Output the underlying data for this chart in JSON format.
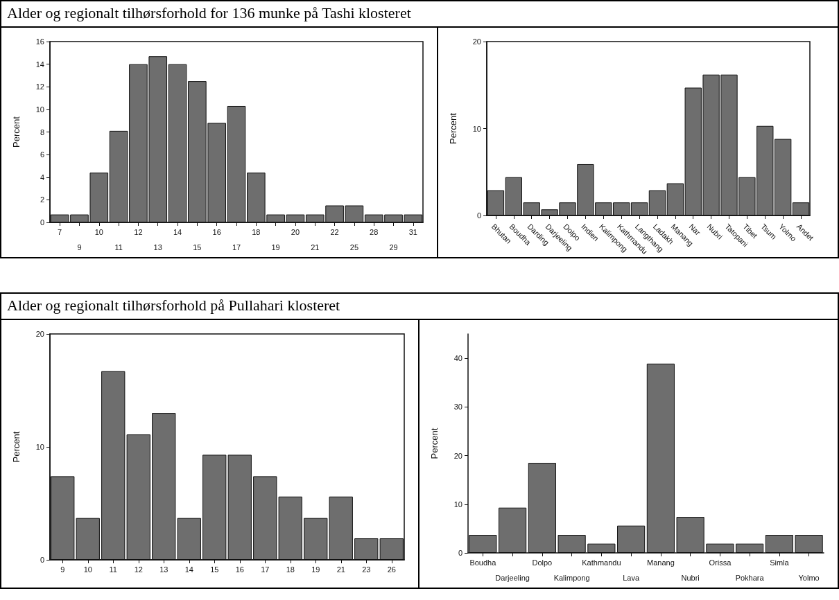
{
  "chart_data": [
    {
      "type": "bar",
      "title": "Alder og regionalt tilhørsforhold for 136 munke på Tashi klosteret",
      "ylabel": "Percent",
      "categories": [
        "7",
        "9",
        "10",
        "11",
        "12",
        "13",
        "14",
        "15",
        "16",
        "17",
        "18",
        "19",
        "20",
        "21",
        "22",
        "25",
        "28",
        "29",
        "31"
      ],
      "values": [
        0.7,
        0.7,
        4.4,
        8.1,
        14,
        14.7,
        14,
        12.5,
        8.8,
        10.3,
        4.4,
        0.7,
        0.7,
        0.7,
        1.5,
        1.5,
        0.7,
        0.7,
        0.7
      ],
      "color": "#6e6e6e",
      "ylim": [
        0,
        16
      ],
      "yticks": [
        0,
        2,
        4,
        6,
        8,
        10,
        12,
        14,
        16
      ],
      "grid": false
    },
    {
      "type": "bar",
      "ylabel": "Percent",
      "categories": [
        "Bhutan",
        "Boudha",
        "Darding",
        "Darjeeling",
        "Dolpo",
        "Indien",
        "Kalimpong",
        "Kathmandu",
        "Langthang",
        "Ladakh",
        "Manang",
        "Nar",
        "Nubri",
        "Tatopani",
        "Tibet",
        "Tsum",
        "Yolmo",
        "Andet"
      ],
      "values": [
        2.9,
        4.4,
        1.5,
        0.7,
        1.5,
        5.9,
        1.5,
        1.5,
        1.5,
        2.9,
        3.7,
        14.7,
        16.2,
        16.2,
        4.4,
        10.3,
        8.8,
        1.5
      ],
      "color": "#6e6e6e",
      "ylim": [
        0,
        20
      ],
      "yticks": [
        0,
        10,
        20
      ],
      "grid": false
    },
    {
      "type": "bar",
      "title": "Alder og regionalt tilhørsforhold på Pullahari klosteret",
      "ylabel": "Percent",
      "categories": [
        "9",
        "10",
        "11",
        "12",
        "13",
        "14",
        "15",
        "16",
        "17",
        "18",
        "19",
        "21",
        "23",
        "26"
      ],
      "values": [
        7.4,
        3.7,
        16.7,
        11.1,
        13,
        3.7,
        9.3,
        9.3,
        7.4,
        5.6,
        3.7,
        5.6,
        1.9,
        1.9
      ],
      "color": "#6e6e6e",
      "ylim": [
        0,
        20
      ],
      "yticks": [
        0,
        10,
        20
      ],
      "grid": false
    },
    {
      "type": "bar",
      "ylabel": "Percent",
      "categories": [
        "Boudha",
        "Darjeeling",
        "Dolpo",
        "Kalimpong",
        "Kathmandu",
        "Lava",
        "Manang",
        "Nubri",
        "Orissa",
        "Pokhara",
        "Simla",
        "Yolmo"
      ],
      "values": [
        3.7,
        9.3,
        18.5,
        3.7,
        1.9,
        5.6,
        38.9,
        7.4,
        1.9,
        1.9,
        3.7,
        3.7
      ],
      "color": "#6e6e6e",
      "ylim": [
        0,
        45
      ],
      "yticks": [
        0,
        10,
        20,
        30,
        40
      ],
      "grid": false
    }
  ]
}
